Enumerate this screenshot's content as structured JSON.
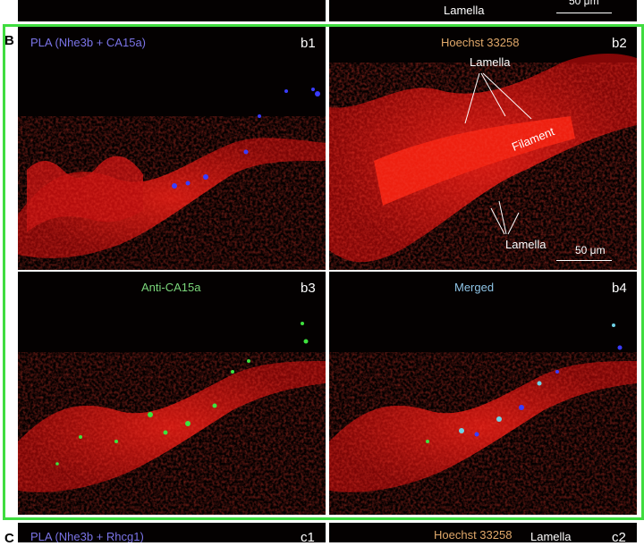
{
  "top_strip": {
    "annotation": "Lamella",
    "scalebar": "50 μm"
  },
  "section_b": {
    "letter": "B",
    "panels": [
      {
        "id": "b1",
        "title": "PLA  (Nhe3b + CA15a)",
        "title_color": "#7b74e8"
      },
      {
        "id": "b2",
        "title": "Hoechst 33258",
        "title_color": "#e0a86a",
        "annotations": {
          "lamella_top": "Lamella",
          "filament": "Filament",
          "lamella_bottom": "Lamella"
        },
        "scalebar": "50 μm"
      },
      {
        "id": "b3",
        "title": "Anti-CA15a",
        "title_color": "#7ad67a"
      },
      {
        "id": "b4",
        "title": "Merged",
        "title_color": "#8fc4e6"
      }
    ]
  },
  "section_c": {
    "letter": "C",
    "panels": [
      {
        "id": "c1",
        "title": "PLA  (Nhe3b + Rhcg1)",
        "title_color": "#7b74e8"
      },
      {
        "id": "c2",
        "title": "Hoechst 33258",
        "title_color": "#e0a86a",
        "annotation": "Lamella"
      }
    ]
  },
  "colors": {
    "frame": "#3fdc3f",
    "tissue": "#c81010",
    "background": "#040101"
  }
}
